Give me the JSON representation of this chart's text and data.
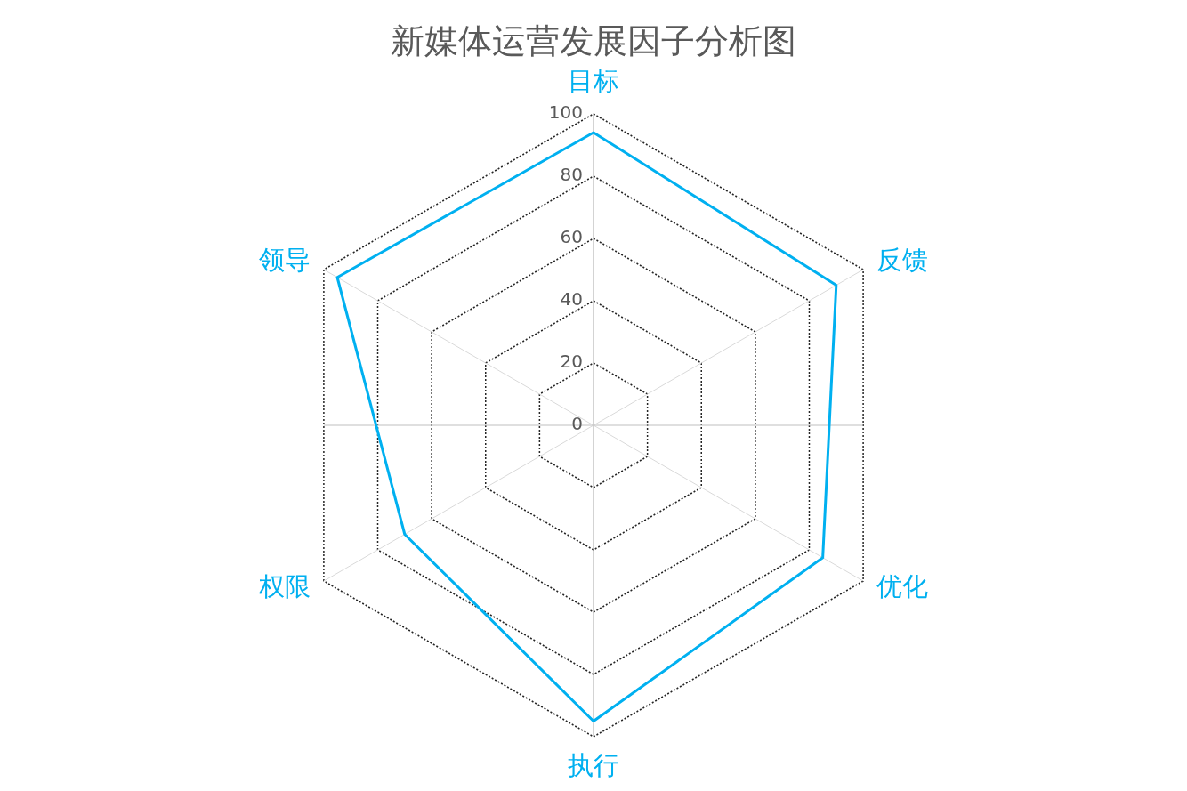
{
  "chart_data": {
    "type": "radar",
    "title": "新媒体运营发展因子分析图",
    "categories": [
      "目标",
      "反馈",
      "优化",
      "执行",
      "权限",
      "领导"
    ],
    "series": [
      {
        "color": "#00b0f0",
        "values": [
          94,
          90,
          85,
          95,
          70,
          95
        ]
      }
    ],
    "ylim": [
      0,
      100
    ],
    "yticks": [
      0,
      20,
      40,
      60,
      80,
      100
    ],
    "grid": true,
    "legend": false,
    "marker": "none"
  }
}
